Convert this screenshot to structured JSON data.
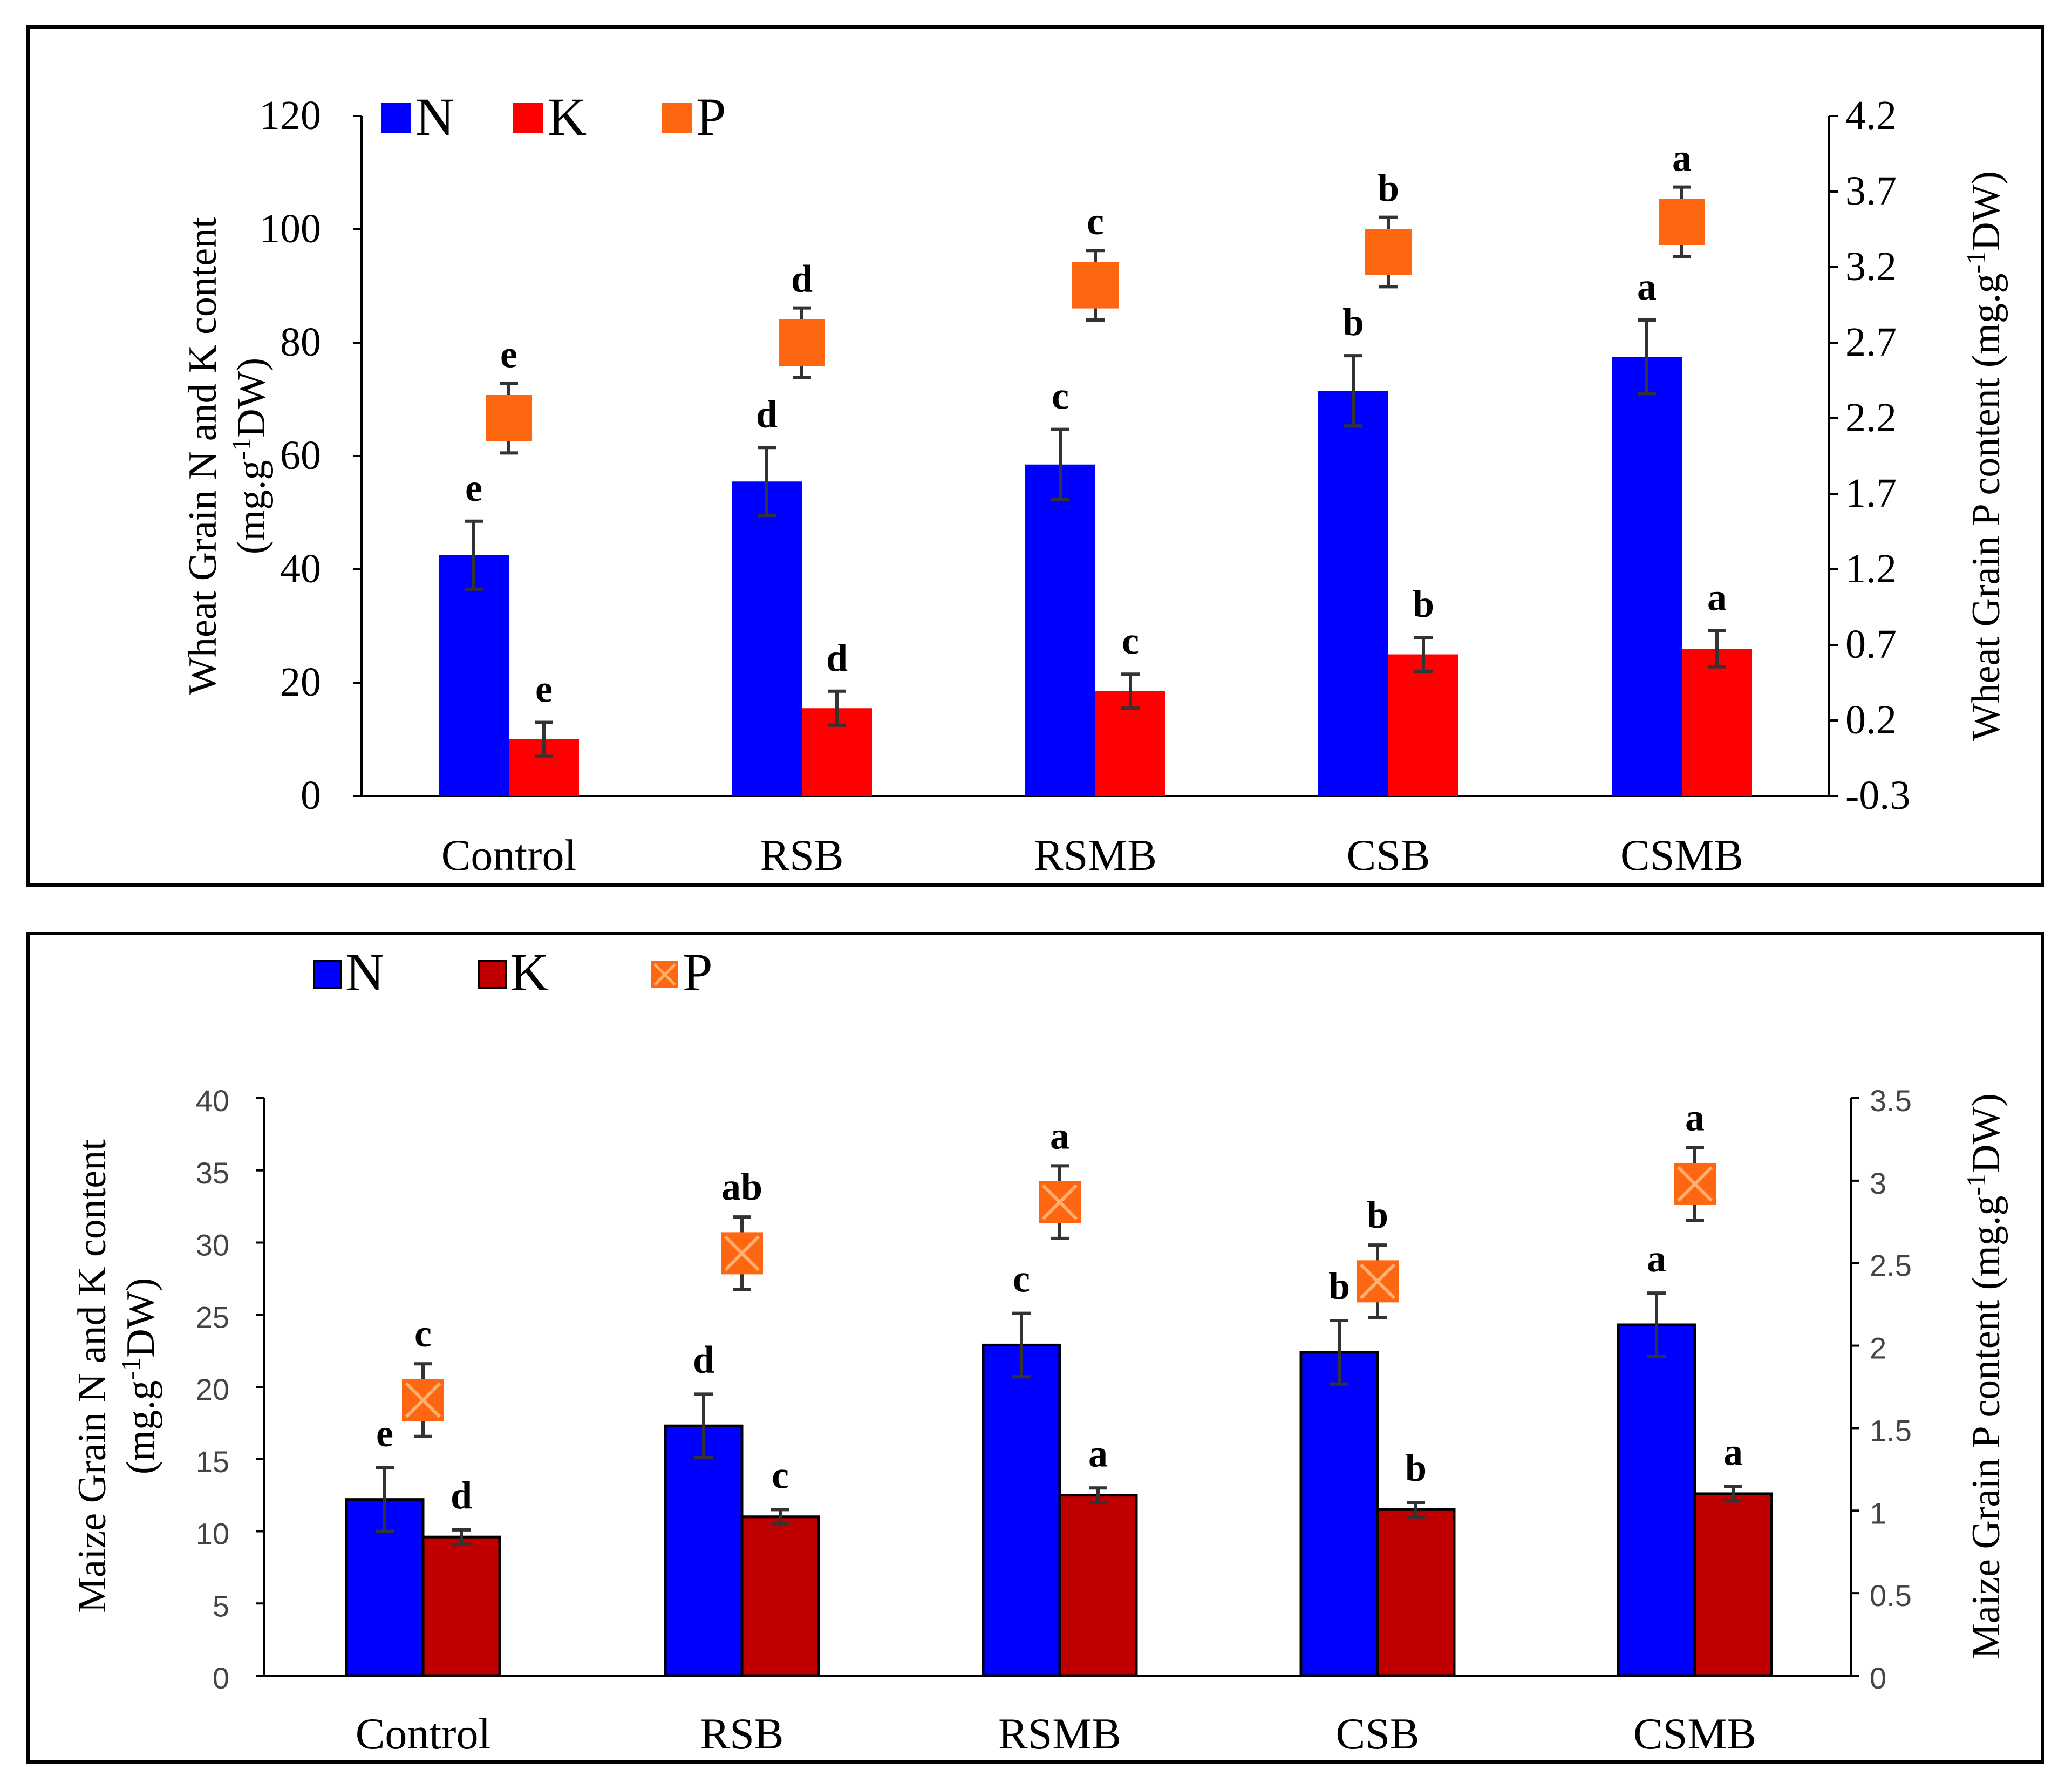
{
  "chart_data": [
    {
      "type": "bar",
      "id": "wheat",
      "categories": [
        "Control",
        "RSB",
        "RSMB",
        "CSB",
        "CSMB"
      ],
      "series": [
        {
          "name": "N",
          "axis": "left",
          "color": "#0000ff",
          "values": [
            42.5,
            55.5,
            58.5,
            71.5,
            77.5
          ],
          "errors": [
            6.0,
            6.0,
            6.2,
            6.2,
            6.5
          ],
          "letters": [
            "e",
            "d",
            "c",
            "b",
            "a"
          ]
        },
        {
          "name": "K",
          "axis": "left",
          "color": "#ff0000",
          "values": [
            10.0,
            15.5,
            18.5,
            25.0,
            26.0
          ],
          "errors": [
            3.0,
            3.0,
            3.0,
            3.0,
            3.2
          ],
          "letters": [
            "e",
            "d",
            "c",
            "b",
            "a"
          ]
        },
        {
          "name": "P",
          "axis": "right",
          "marker": "square",
          "color": "#ff6611",
          "values": [
            2.2,
            2.7,
            3.08,
            3.3,
            3.5
          ],
          "errors": [
            0.23,
            0.23,
            0.23,
            0.23,
            0.23
          ],
          "letters": [
            "e",
            "d",
            "c",
            "b",
            "a"
          ]
        }
      ],
      "ylabel_lines": [
        "Wheat Grain N and K content",
        "(mg.g",
        "-1",
        "DW)"
      ],
      "y2label": [
        "Wheat Grain P content (mg.g",
        "-1",
        "DW)"
      ],
      "ylim": [
        0,
        120
      ],
      "yticks": [
        "0",
        "20",
        "40",
        "60",
        "80",
        "100",
        "120"
      ],
      "y2lim": [
        -0.3,
        4.2
      ],
      "y2ticks": [
        "-0.3",
        "0.2",
        "0.7",
        "1.2",
        "1.7",
        "2.2",
        "2.7",
        "3.2",
        "3.7",
        "4.2"
      ],
      "legend": [
        "N",
        "K",
        "P"
      ],
      "legend_position": "top-left"
    },
    {
      "type": "bar",
      "id": "maize",
      "categories": [
        "Control",
        "RSB",
        "RSMB",
        "CSB",
        "CSMB"
      ],
      "series": [
        {
          "name": "N",
          "axis": "left",
          "color": "#0000ff",
          "values": [
            12.2,
            17.3,
            22.9,
            22.4,
            24.3
          ],
          "errors": [
            2.2,
            2.2,
            2.2,
            2.2,
            2.2
          ],
          "letters": [
            "e",
            "d",
            "c",
            "b",
            "a"
          ]
        },
        {
          "name": "K",
          "axis": "left",
          "color": "#c00000",
          "values": [
            9.6,
            11.0,
            12.5,
            11.5,
            12.6
          ],
          "errors": [
            0.5,
            0.5,
            0.5,
            0.5,
            0.5
          ],
          "letters": [
            "d",
            "c",
            "a",
            "b",
            "a"
          ]
        },
        {
          "name": "P",
          "axis": "right",
          "marker": "square-x",
          "color": "#ff6611",
          "values": [
            1.67,
            2.56,
            2.87,
            2.39,
            2.98
          ],
          "errors": [
            0.22,
            0.22,
            0.22,
            0.22,
            0.22
          ],
          "letters": [
            "c",
            "ab",
            "a",
            "b",
            "a"
          ]
        }
      ],
      "ylabel_lines": [
        "Maize Grain N and K content",
        "(mg.g",
        "-1",
        "DW)"
      ],
      "y2label": [
        "Maize Grain P content (mg.g",
        "-1",
        "DW)"
      ],
      "ylim": [
        0,
        40
      ],
      "yticks": [
        "0",
        "5",
        "10",
        "15",
        "20",
        "25",
        "30",
        "35",
        "40"
      ],
      "y2lim": [
        0,
        3.5
      ],
      "y2ticks": [
        "0",
        "0.5",
        "1",
        "1.5",
        "2",
        "2.5",
        "3",
        "3.5"
      ],
      "legend": [
        "N",
        "K",
        "P"
      ],
      "legend_position": "top-left"
    }
  ]
}
